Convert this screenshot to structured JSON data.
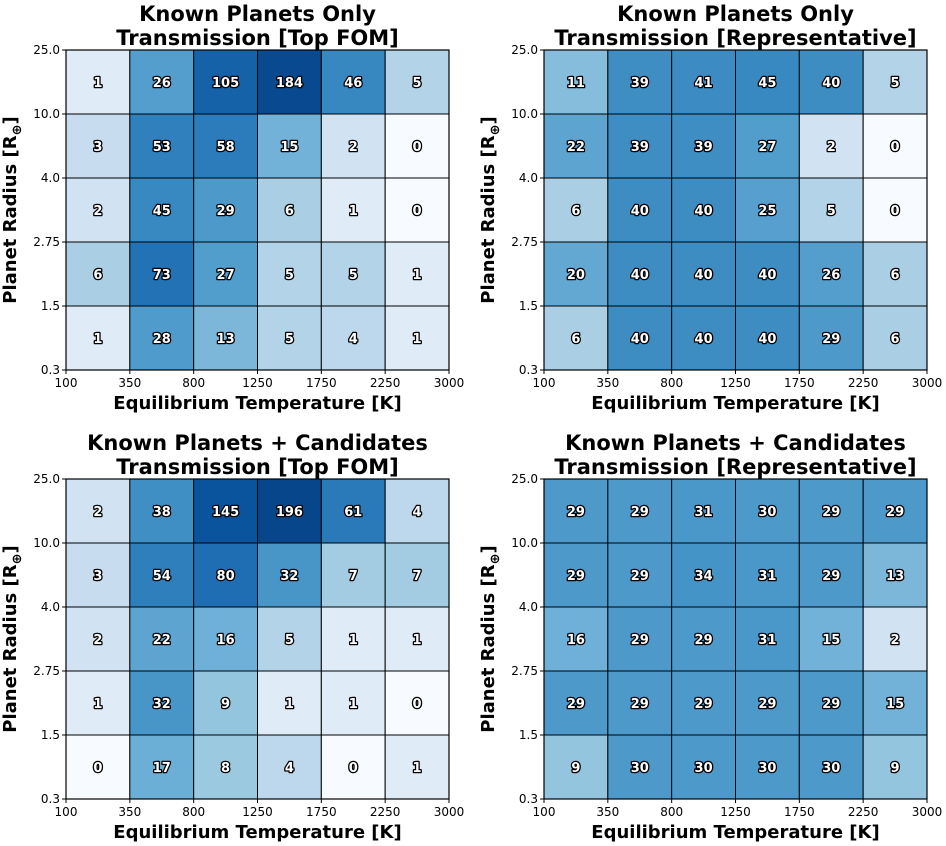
{
  "figure": {
    "colormap": "Blues",
    "vmin": 0,
    "vmax": 200
  },
  "chart_data": [
    {
      "type": "heatmap",
      "title": "Known Planets Only\nTransmission [Top FOM]",
      "xlabel": "Equilibrium Temperature [K]",
      "ylabel": "Planet Radius [R⊕]",
      "ylabel_main": "Planet Radius [R",
      "ylabel_sub": "⊕",
      "ylabel_close": "]",
      "x_edges": [
        "100",
        "350",
        "800",
        "1250",
        "1750",
        "2250",
        "3000"
      ],
      "y_edges": [
        "0.3",
        "1.5",
        "2.75",
        "4.0",
        "10.0",
        "25.0"
      ],
      "values": [
        [
          1,
          28,
          13,
          5,
          4,
          1
        ],
        [
          6,
          73,
          27,
          5,
          5,
          1
        ],
        [
          2,
          45,
          29,
          6,
          1,
          0
        ],
        [
          3,
          53,
          58,
          15,
          2,
          0
        ],
        [
          1,
          26,
          105,
          184,
          46,
          5
        ]
      ]
    },
    {
      "type": "heatmap",
      "title": "Known Planets Only\nTransmission [Representative]",
      "xlabel": "Equilibrium Temperature [K]",
      "ylabel": "Planet Radius [R⊕]",
      "ylabel_main": "Planet Radius [R",
      "ylabel_sub": "⊕",
      "ylabel_close": "]",
      "x_edges": [
        "100",
        "350",
        "800",
        "1250",
        "1750",
        "2250",
        "3000"
      ],
      "y_edges": [
        "0.3",
        "1.5",
        "2.75",
        "4.0",
        "10.0",
        "25.0"
      ],
      "values": [
        [
          6,
          40,
          40,
          40,
          29,
          6
        ],
        [
          20,
          40,
          40,
          40,
          26,
          6
        ],
        [
          6,
          40,
          40,
          25,
          5,
          0
        ],
        [
          22,
          39,
          39,
          27,
          2,
          0
        ],
        [
          11,
          39,
          41,
          45,
          40,
          5
        ]
      ]
    },
    {
      "type": "heatmap",
      "title": "Known Planets + Candidates\nTransmission [Top FOM]",
      "xlabel": "Equilibrium Temperature [K]",
      "ylabel": "Planet Radius [R⊕]",
      "ylabel_main": "Planet Radius [R",
      "ylabel_sub": "⊕",
      "ylabel_close": "]",
      "x_edges": [
        "100",
        "350",
        "800",
        "1250",
        "1750",
        "2250",
        "3000"
      ],
      "y_edges": [
        "0.3",
        "1.5",
        "2.75",
        "4.0",
        "10.0",
        "25.0"
      ],
      "values": [
        [
          0,
          17,
          8,
          4,
          0,
          1
        ],
        [
          1,
          32,
          9,
          1,
          1,
          0
        ],
        [
          2,
          22,
          16,
          5,
          1,
          1
        ],
        [
          3,
          54,
          80,
          32,
          7,
          7
        ],
        [
          2,
          38,
          145,
          196,
          61,
          4
        ]
      ]
    },
    {
      "type": "heatmap",
      "title": "Known Planets + Candidates\nTransmission [Representative]",
      "xlabel": "Equilibrium Temperature [K]",
      "ylabel": "Planet Radius [R⊕]",
      "ylabel_main": "Planet Radius [R",
      "ylabel_sub": "⊕",
      "ylabel_close": "]",
      "x_edges": [
        "100",
        "350",
        "800",
        "1250",
        "1750",
        "2250",
        "3000"
      ],
      "y_edges": [
        "0.3",
        "1.5",
        "2.75",
        "4.0",
        "10.0",
        "25.0"
      ],
      "values": [
        [
          9,
          30,
          30,
          30,
          30,
          9
        ],
        [
          29,
          29,
          29,
          29,
          29,
          15
        ],
        [
          16,
          29,
          29,
          31,
          15,
          2
        ],
        [
          29,
          29,
          34,
          31,
          29,
          13
        ],
        [
          29,
          29,
          31,
          30,
          29,
          29
        ]
      ]
    }
  ]
}
